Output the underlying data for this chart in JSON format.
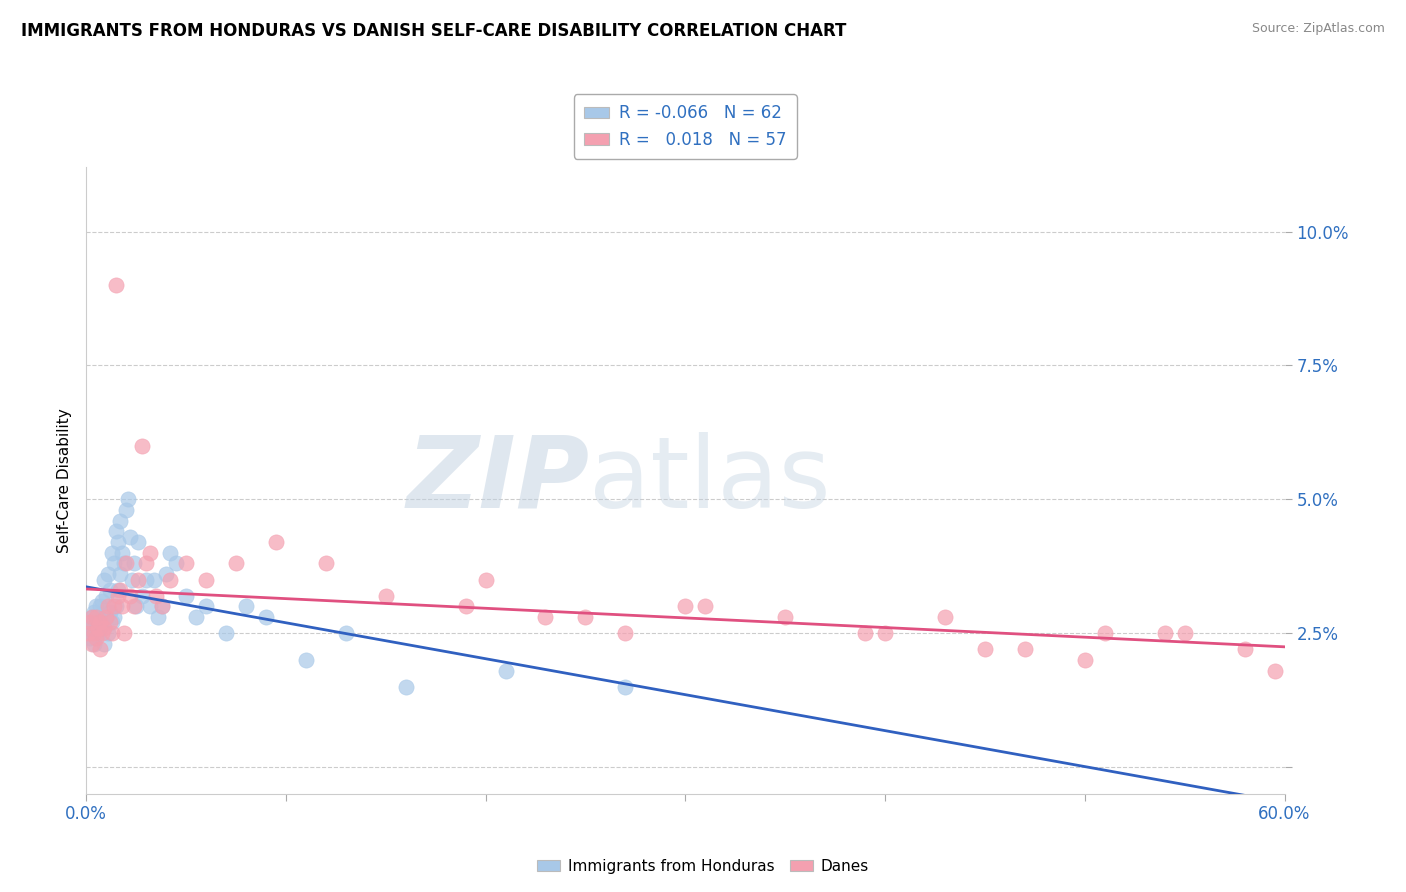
{
  "title": "IMMIGRANTS FROM HONDURAS VS DANISH SELF-CARE DISABILITY CORRELATION CHART",
  "source_text": "Source: ZipAtlas.com",
  "ylabel": "Self-Care Disability",
  "xlim": [
    0.0,
    0.6
  ],
  "ylim": [
    -0.005,
    0.112
  ],
  "xticks": [
    0.0,
    0.1,
    0.2,
    0.3,
    0.4,
    0.5,
    0.6
  ],
  "yticks": [
    0.0,
    0.025,
    0.05,
    0.075,
    0.1
  ],
  "legend_r_blue": "-0.066",
  "legend_n_blue": "62",
  "legend_r_pink": "0.018",
  "legend_n_pink": "57",
  "blue_color": "#a8c8e8",
  "pink_color": "#f4a0b0",
  "blue_line_color": "#3060c0",
  "pink_line_color": "#e05080",
  "watermark_color": "#c8d8e8",
  "blue_scatter_x": [
    0.001,
    0.002,
    0.002,
    0.003,
    0.003,
    0.004,
    0.004,
    0.005,
    0.005,
    0.006,
    0.006,
    0.007,
    0.007,
    0.008,
    0.008,
    0.009,
    0.009,
    0.01,
    0.01,
    0.011,
    0.011,
    0.012,
    0.012,
    0.013,
    0.013,
    0.014,
    0.014,
    0.015,
    0.015,
    0.016,
    0.016,
    0.017,
    0.017,
    0.018,
    0.019,
    0.02,
    0.021,
    0.022,
    0.023,
    0.024,
    0.025,
    0.026,
    0.028,
    0.03,
    0.032,
    0.034,
    0.036,
    0.038,
    0.04,
    0.042,
    0.045,
    0.05,
    0.055,
    0.06,
    0.07,
    0.08,
    0.09,
    0.11,
    0.13,
    0.16,
    0.21,
    0.27
  ],
  "blue_scatter_y": [
    0.026,
    0.027,
    0.024,
    0.028,
    0.025,
    0.029,
    0.023,
    0.03,
    0.026,
    0.028,
    0.025,
    0.03,
    0.026,
    0.031,
    0.027,
    0.035,
    0.023,
    0.032,
    0.028,
    0.036,
    0.025,
    0.033,
    0.029,
    0.04,
    0.027,
    0.038,
    0.028,
    0.044,
    0.03,
    0.042,
    0.033,
    0.046,
    0.036,
    0.04,
    0.038,
    0.048,
    0.05,
    0.043,
    0.035,
    0.038,
    0.03,
    0.042,
    0.032,
    0.035,
    0.03,
    0.035,
    0.028,
    0.03,
    0.036,
    0.04,
    0.038,
    0.032,
    0.028,
    0.03,
    0.025,
    0.03,
    0.028,
    0.02,
    0.025,
    0.015,
    0.018,
    0.015
  ],
  "pink_scatter_x": [
    0.001,
    0.002,
    0.003,
    0.003,
    0.004,
    0.005,
    0.005,
    0.006,
    0.007,
    0.007,
    0.008,
    0.009,
    0.01,
    0.011,
    0.012,
    0.013,
    0.014,
    0.015,
    0.016,
    0.017,
    0.018,
    0.019,
    0.02,
    0.022,
    0.024,
    0.026,
    0.028,
    0.03,
    0.032,
    0.035,
    0.038,
    0.042,
    0.05,
    0.06,
    0.075,
    0.095,
    0.12,
    0.15,
    0.19,
    0.23,
    0.27,
    0.31,
    0.35,
    0.39,
    0.43,
    0.47,
    0.51,
    0.55,
    0.58,
    0.595,
    0.2,
    0.25,
    0.3,
    0.4,
    0.45,
    0.5,
    0.54
  ],
  "pink_scatter_y": [
    0.025,
    0.027,
    0.023,
    0.028,
    0.025,
    0.024,
    0.028,
    0.026,
    0.022,
    0.027,
    0.025,
    0.026,
    0.028,
    0.03,
    0.027,
    0.025,
    0.03,
    0.09,
    0.032,
    0.033,
    0.03,
    0.025,
    0.038,
    0.032,
    0.03,
    0.035,
    0.06,
    0.038,
    0.04,
    0.032,
    0.03,
    0.035,
    0.038,
    0.035,
    0.038,
    0.042,
    0.038,
    0.032,
    0.03,
    0.028,
    0.025,
    0.03,
    0.028,
    0.025,
    0.028,
    0.022,
    0.025,
    0.025,
    0.022,
    0.018,
    0.035,
    0.028,
    0.03,
    0.025,
    0.022,
    0.02,
    0.025
  ]
}
